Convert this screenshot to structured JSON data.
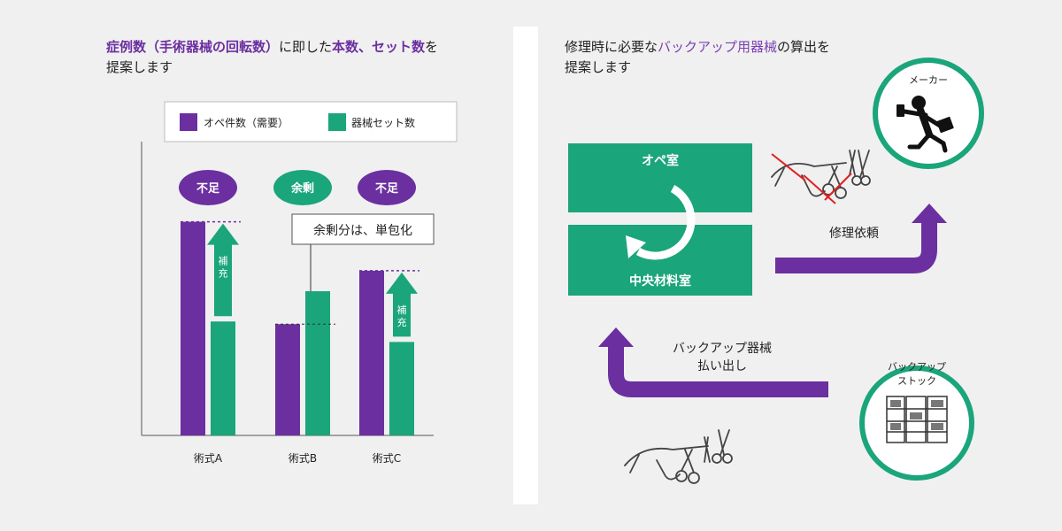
{
  "left": {
    "heading": {
      "line1_a": "症例数（手術器械の回転数）",
      "line1_b": "に即した",
      "line1_c": "本数、セット数",
      "line1_d": "を",
      "line2": "提案します"
    },
    "legend": {
      "ope": "オペ件数（需要）",
      "set": "器械セット数"
    },
    "callout": "余剰分は、単包化",
    "supplement_label": "補充",
    "colors": {
      "purple": "#6b2fa0",
      "green": "#1aa57a"
    },
    "chart_data": {
      "type": "bar",
      "categories": [
        "術式A",
        "術式B",
        "術式C"
      ],
      "series": [
        {
          "name": "オペ件数（需要）",
          "values": [
            240,
            125,
            185
          ]
        },
        {
          "name": "器械セット数",
          "values": [
            128,
            162,
            105
          ]
        }
      ],
      "supplement_to": [
        240,
        null,
        185
      ],
      "badges": [
        "不足",
        "余剰",
        "不足"
      ],
      "ylim": [
        0,
        340
      ]
    }
  },
  "right": {
    "heading": {
      "line1_a": "修理時に必要な",
      "line1_b": "バックアップ用器械",
      "line1_c": "の算出を",
      "line2": "提案します"
    },
    "ope_room": "オペ室",
    "central_room": "中央材料室",
    "repair_request": "修理依頼",
    "maker": "メーカー",
    "backup_out_line1": "バックアップ器械",
    "backup_out_line2": "払い出し",
    "backup_stock_line1": "バックアップ",
    "backup_stock_line2": "ストック"
  }
}
